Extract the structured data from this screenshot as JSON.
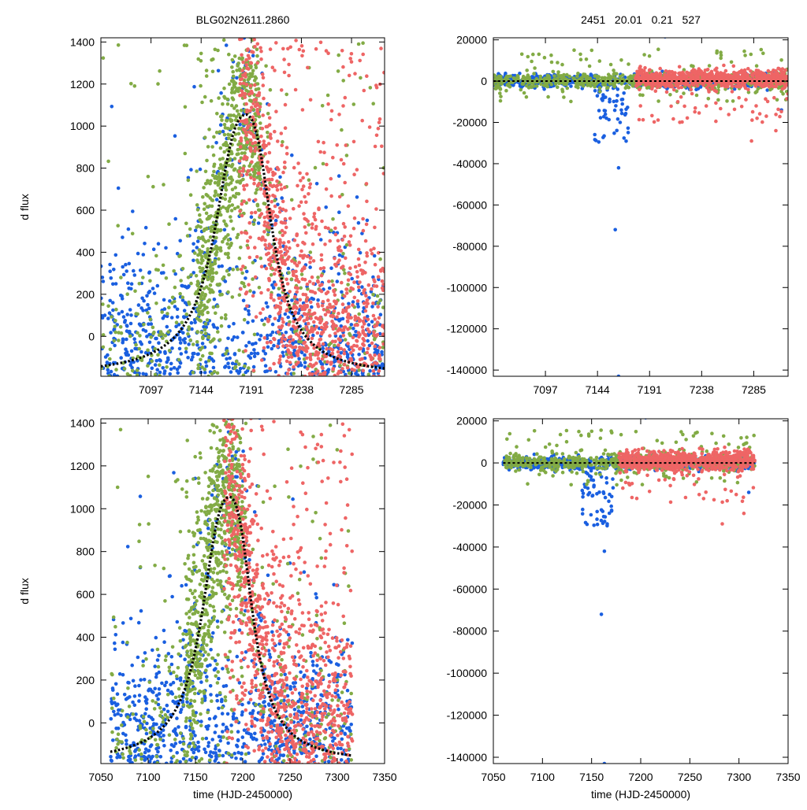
{
  "header": {
    "left_title": "BLG02N2611.2860",
    "right_title": "2451   20.01   0.21   527"
  },
  "colors": {
    "blue": "#1a5fe0",
    "green": "#82ab45",
    "red": "#ee6565",
    "model": "#000000"
  },
  "chart_data": [
    {
      "id": "top-left",
      "type": "scatter",
      "title": "BLG02N2611.2860",
      "xlabel": "",
      "ylabel": "d flux",
      "xlim": [
        7050,
        7316
      ],
      "ylim": [
        -190,
        1420
      ],
      "xticks": [
        7097,
        7144,
        7191,
        7238,
        7285
      ],
      "yticks": [
        0,
        200,
        400,
        600,
        800,
        1000,
        1200,
        1400
      ],
      "ytick_labels": [
        "0",
        "200",
        "400",
        "600",
        "800",
        "1000",
        "1200",
        "1400"
      ],
      "model_curve": {
        "peak_x": 7186,
        "peak_y": 1055,
        "baseline": -190,
        "rise_width": 26,
        "fall_width": 22
      },
      "series": [
        {
          "name": "blue",
          "x_range": [
            7050,
            7316
          ],
          "y_range": [
            -190,
            1420
          ],
          "note": "dense scatter, many points near baseline"
        },
        {
          "name": "green",
          "x_range": [
            7050,
            7316
          ],
          "y_range": [
            -190,
            1420
          ],
          "note": "concentrated along rising limb 7140-7200"
        },
        {
          "name": "red",
          "x_range": [
            7180,
            7316
          ],
          "y_range": [
            -190,
            1420
          ],
          "note": "dense after peak"
        }
      ]
    },
    {
      "id": "top-right",
      "type": "scatter",
      "title": "2451   20.01   0.21   527",
      "xlabel": "",
      "ylabel": "",
      "xlim": [
        7050,
        7316
      ],
      "ylim": [
        -143000,
        21000
      ],
      "xticks": [
        7097,
        7144,
        7191,
        7238,
        7285
      ],
      "yticks": [
        20000,
        0,
        -20000,
        -40000,
        -60000,
        -80000,
        -100000,
        -120000,
        -140000
      ],
      "ytick_labels": [
        "20000",
        "0",
        "-20000",
        "-40000",
        "-60000",
        "-80000",
        "-100000",
        "-120000",
        "-140000"
      ],
      "series": [
        {
          "name": "blue",
          "note": "residuals near 0, dip to -30000 around 7140-7170, outliers -42000, -72000, -143000"
        },
        {
          "name": "green",
          "note": "residuals near 0, scatter up to 20000"
        },
        {
          "name": "red",
          "note": "residuals near 0, outliers -18000, -29000"
        }
      ]
    },
    {
      "id": "bottom-left",
      "type": "scatter",
      "title": "",
      "xlabel": "time (HJD-2450000)",
      "ylabel": "d flux",
      "xlim": [
        7050,
        7350
      ],
      "ylim": [
        -190,
        1420
      ],
      "xticks": [
        7050,
        7100,
        7150,
        7200,
        7250,
        7300,
        7350
      ],
      "yticks": [
        0,
        200,
        400,
        600,
        800,
        1000,
        1200,
        1400
      ],
      "ytick_labels": [
        "0",
        "200",
        "400",
        "600",
        "800",
        "1000",
        "1200",
        "1400"
      ],
      "model_curve": {
        "peak_x": 7186,
        "peak_y": 1055,
        "baseline": -190,
        "rise_width": 26,
        "fall_width": 22
      },
      "series": [
        {
          "name": "blue",
          "x_range": [
            7060,
            7316
          ]
        },
        {
          "name": "green",
          "x_range": [
            7060,
            7316
          ]
        },
        {
          "name": "red",
          "x_range": [
            7180,
            7316
          ]
        }
      ]
    },
    {
      "id": "bottom-right",
      "type": "scatter",
      "title": "",
      "xlabel": "time (HJD-2450000)",
      "ylabel": "",
      "xlim": [
        7050,
        7350
      ],
      "ylim": [
        -143000,
        21000
      ],
      "xticks": [
        7050,
        7100,
        7150,
        7200,
        7250,
        7300,
        7350
      ],
      "yticks": [
        20000,
        0,
        -20000,
        -40000,
        -60000,
        -80000,
        -100000,
        -120000,
        -140000
      ],
      "ytick_labels": [
        "20000",
        "0",
        "-20000",
        "-40000",
        "-60000",
        "-80000",
        "-100000",
        "-120000",
        "-140000"
      ],
      "series": [
        {
          "name": "blue"
        },
        {
          "name": "green"
        },
        {
          "name": "red"
        }
      ]
    }
  ]
}
